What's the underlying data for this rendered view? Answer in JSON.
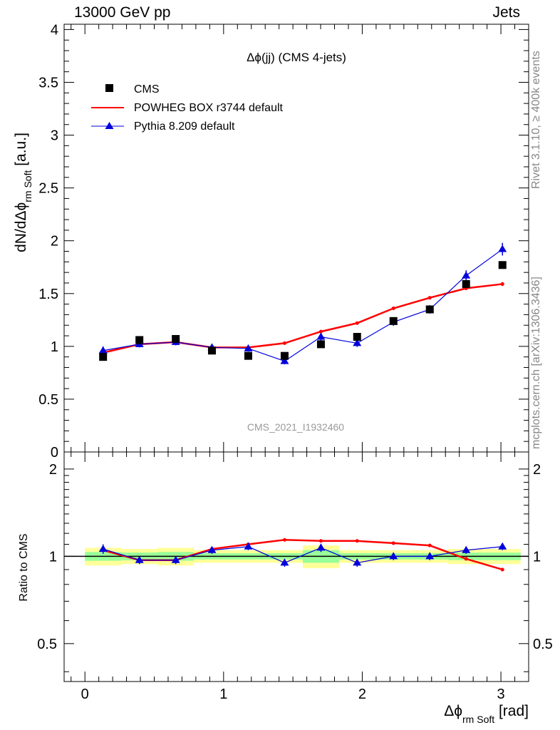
{
  "header": {
    "energy": "13000 GeV pp",
    "category": "Jets"
  },
  "side_labels": {
    "rivet": "Rivet 3.1.10, ≥ 400k events",
    "source": "mcplots.cern.ch [arXiv:1306.3436]"
  },
  "analysis_id": "CMS_2021_I1932460",
  "colors": {
    "data": "#000000",
    "powheg": "#ff0000",
    "pythia": "#0000dd",
    "band_outer": "#ffff99",
    "band_inner": "#99ff99"
  },
  "chart_data": [
    {
      "type": "scatter",
      "title": "Δϕ(jj) (CMS 4-jets)",
      "ylabel": {
        "main": "dN/dΔϕ",
        "sub": "rm Soft",
        "unit": " [a.u.]"
      },
      "xlabel": {
        "main": "Δϕ",
        "sub": "rm Soft",
        "unit": " [rad]"
      },
      "xlim": [
        -0.15,
        3.2
      ],
      "ylim": [
        0,
        4.05
      ],
      "x_ticks": [
        "0",
        "1",
        "2",
        "3"
      ],
      "y_ticks": [
        "0",
        "0.5",
        "1",
        "1.5",
        "2",
        "2.5",
        "3",
        "3.5",
        "4"
      ],
      "x": [
        0.131,
        0.393,
        0.655,
        0.916,
        1.178,
        1.44,
        1.702,
        1.963,
        2.225,
        2.487,
        2.749,
        3.011
      ],
      "series": [
        {
          "name": "CMS",
          "marker": "square",
          "values": [
            0.9,
            1.06,
            1.07,
            0.96,
            0.91,
            0.91,
            1.02,
            1.09,
            1.24,
            1.35,
            1.59,
            1.77
          ]
        },
        {
          "name": "POWHEG BOX r3744 default",
          "marker": "line",
          "values": [
            0.94,
            1.02,
            1.04,
            0.99,
            0.99,
            1.03,
            1.14,
            1.22,
            1.36,
            1.46,
            1.55,
            1.59
          ],
          "errors": [
            0.012,
            0.012,
            0.012,
            0.012,
            0.012,
            0.012,
            0.015,
            0.015,
            0.015,
            0.015,
            0.018,
            0.018
          ]
        },
        {
          "name": "Pythia 8.209 default",
          "marker": "triangle",
          "values": [
            0.96,
            1.02,
            1.04,
            0.99,
            0.98,
            0.86,
            1.09,
            1.03,
            1.23,
            1.35,
            1.67,
            1.92
          ],
          "errors": [
            0.04,
            0.03,
            0.03,
            0.03,
            0.03,
            0.03,
            0.035,
            0.035,
            0.035,
            0.04,
            0.05,
            0.06
          ]
        }
      ]
    },
    {
      "type": "line",
      "ylabel": "Ratio to CMS",
      "xlim": [
        -0.15,
        3.2
      ],
      "ylim": [
        0.37,
        2.29
      ],
      "y_scale": "log",
      "y_ticks": [
        "0.5",
        "1",
        "2"
      ],
      "x_edges": [
        0,
        0.262,
        0.524,
        0.785,
        1.047,
        1.309,
        1.571,
        1.833,
        2.094,
        2.356,
        2.618,
        2.88,
        3.142
      ],
      "x": [
        0.131,
        0.393,
        0.655,
        0.916,
        1.178,
        1.44,
        1.702,
        1.963,
        2.225,
        2.487,
        2.749,
        3.011
      ],
      "reference": 1,
      "band_outer": [
        0.07,
        0.06,
        0.07,
        0.05,
        0.05,
        0.05,
        0.09,
        0.05,
        0.05,
        0.05,
        0.06,
        0.06
      ],
      "band_inner": [
        0.035,
        0.03,
        0.035,
        0.025,
        0.025,
        0.025,
        0.05,
        0.025,
        0.025,
        0.025,
        0.03,
        0.03
      ],
      "series": [
        {
          "name": "POWHEG BOX r3744 default",
          "values": [
            1.05,
            0.97,
            0.97,
            1.06,
            1.1,
            1.14,
            1.13,
            1.13,
            1.11,
            1.09,
            0.98,
            0.9
          ],
          "errors": [
            0.012,
            0.012,
            0.012,
            0.012,
            0.012,
            0.012,
            0.012,
            0.012,
            0.012,
            0.012,
            0.012,
            0.012
          ]
        },
        {
          "name": "Pythia 8.209 default",
          "values": [
            1.06,
            0.97,
            0.97,
            1.05,
            1.08,
            0.95,
            1.07,
            0.95,
            1.0,
            1.0,
            1.05,
            1.08
          ],
          "errors": [
            0.04,
            0.03,
            0.03,
            0.03,
            0.03,
            0.03,
            0.035,
            0.03,
            0.03,
            0.03,
            0.03,
            0.03
          ]
        }
      ]
    }
  ]
}
